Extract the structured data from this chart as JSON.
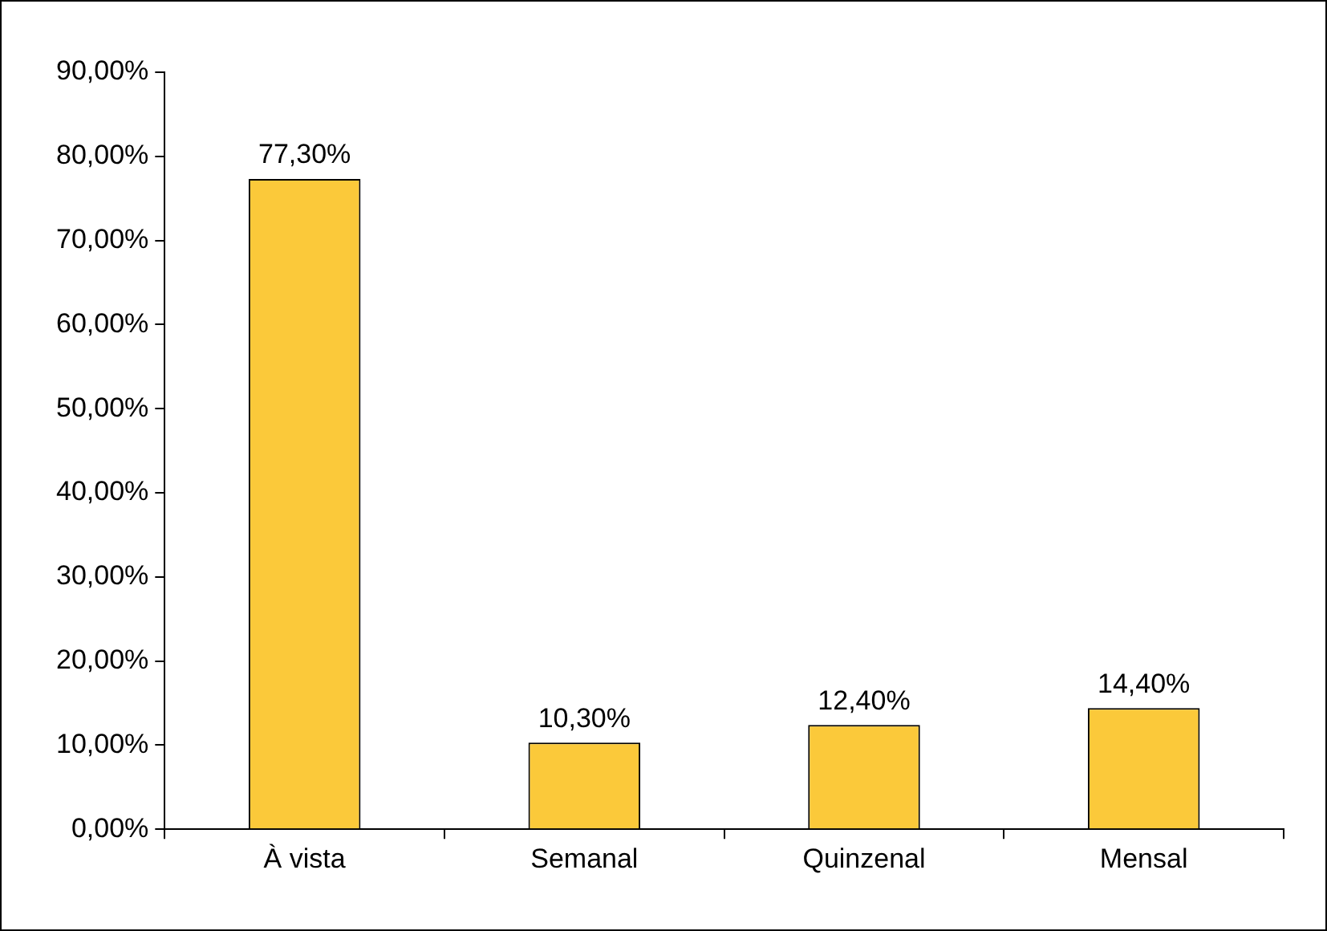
{
  "chart_data": {
    "type": "bar",
    "categories": [
      "À vista",
      "Semanal",
      "Quinzenal",
      "Mensal"
    ],
    "values": [
      77.3,
      10.3,
      12.4,
      14.4
    ],
    "color": "#fbc93a",
    "value_labels": [
      "77,30%",
      "10,30%",
      "12,40%",
      "14,40%"
    ],
    "ylim": [
      0,
      90
    ],
    "yticks": [
      {
        "value": 0,
        "label": "0,00%"
      },
      {
        "value": 10,
        "label": "10,00%"
      },
      {
        "value": 20,
        "label": "20,00%"
      },
      {
        "value": 30,
        "label": "30,00%"
      },
      {
        "value": 40,
        "label": "40,00%"
      },
      {
        "value": 50,
        "label": "50,00%"
      },
      {
        "value": 60,
        "label": "60,00%"
      },
      {
        "value": 70,
        "label": "70,00%"
      },
      {
        "value": 80,
        "label": "80,00%"
      },
      {
        "value": 90,
        "label": "90,00%"
      }
    ],
    "grid": false,
    "legend": false
  }
}
